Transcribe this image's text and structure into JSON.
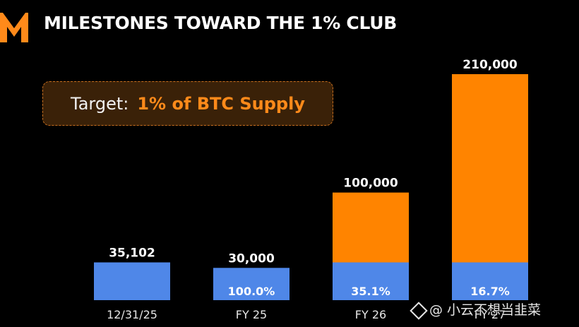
{
  "header": {
    "title": "MILESTONES TOWARD THE 1% CLUB"
  },
  "target": {
    "label": "Target:",
    "value": "1% of BTC Supply"
  },
  "colors": {
    "background": "#000000",
    "holdings": "#4f87e8",
    "additional": "#ff8400",
    "accent": "#ff8a1a"
  },
  "chart_data": {
    "type": "bar",
    "stacked": true,
    "categories": [
      "12/31/25",
      "FY 25",
      "FY 26",
      "FY 27"
    ],
    "totals": [
      35102,
      30000,
      100000,
      210000
    ],
    "total_labels": [
      "35,102",
      "30,000",
      "100,000",
      "210,000"
    ],
    "series": [
      {
        "values": [
          35102,
          30000,
          35102,
          35102
        ]
      },
      {
        "values": [
          0,
          0,
          64898,
          174898
        ]
      }
    ],
    "share_labels": [
      "",
      "100.0%",
      "35.1%",
      "16.7%"
    ],
    "ylim": [
      0,
      210000
    ],
    "grid": false
  },
  "watermark": {
    "text": "@ 小云不想当韭菜"
  }
}
